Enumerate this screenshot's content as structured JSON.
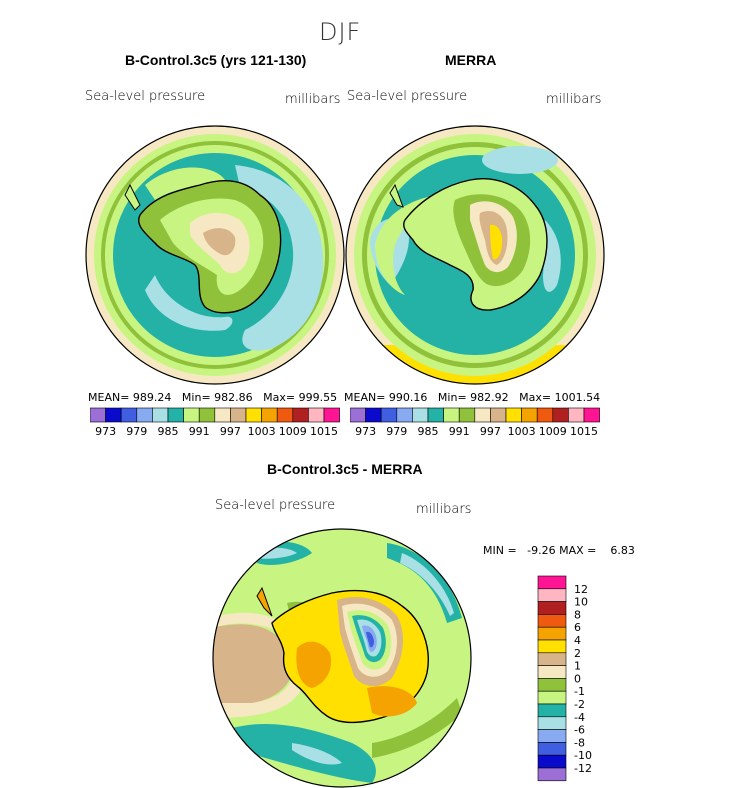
{
  "figure": {
    "title": "DJF"
  },
  "panels": [
    {
      "title": "B-Control.3c5 (yrs 121-130)",
      "variable": "Sea-level pressure",
      "units": "millibars",
      "stats": {
        "mean_label": "MEAN=",
        "mean": "989.24",
        "min_label": "Min=",
        "min": "982.86",
        "max_label": "Max=",
        "max": "999.55"
      }
    },
    {
      "title": "MERRA",
      "variable": "Sea-level pressure",
      "units": "millibars",
      "stats": {
        "mean_label": "MEAN=",
        "mean": "990.16",
        "min_label": "Min=",
        "min": "982.92",
        "max_label": "Max=",
        "max": "1001.54"
      }
    },
    {
      "title": "B-Control.3c5 - MERRA",
      "variable": "Sea-level pressure",
      "units": "millibars",
      "minmax": "MIN =   -9.26 MAX =    6.83"
    }
  ],
  "colorbar_top": {
    "labels": [
      "973",
      "979",
      "985",
      "991",
      "997",
      "1003",
      "1009",
      "1015"
    ],
    "colors": [
      "#9b6fd6",
      "#0a0acd",
      "#3f5ee0",
      "#87aaf0",
      "#a8e0e6",
      "#23b2a5",
      "#c8f582",
      "#8fc23a",
      "#f7e8c4",
      "#d8b48a",
      "#ffe000",
      "#f5a300",
      "#f05a10",
      "#b02020",
      "#ffb6c1",
      "#ff1493"
    ]
  },
  "colorbar_diff": {
    "labels": [
      "12",
      "10",
      "8",
      "6",
      "4",
      "2",
      "1",
      "0",
      "-1",
      "-2",
      "-4",
      "-6",
      "-8",
      "-10",
      "-12"
    ],
    "colors": [
      "#ff1493",
      "#ffb6c1",
      "#b02020",
      "#f05a10",
      "#f5a300",
      "#ffe000",
      "#d8b48a",
      "#f7e8c4",
      "#8fc23a",
      "#c8f582",
      "#23b2a5",
      "#a8e0e6",
      "#87aaf0",
      "#3f5ee0",
      "#0a0acd",
      "#9b6fd6"
    ]
  },
  "palette": {
    "ocean_teal": "#23b2a5",
    "light_cyan": "#a8e0e6",
    "light_green": "#c8f582",
    "olive_green": "#8fc23a",
    "cream": "#f7e8c4",
    "tan": "#d8b48a",
    "yellow": "#ffe000",
    "orange": "#f5a300",
    "blue": "#3f5ee0",
    "light_blue": "#87aaf0"
  }
}
